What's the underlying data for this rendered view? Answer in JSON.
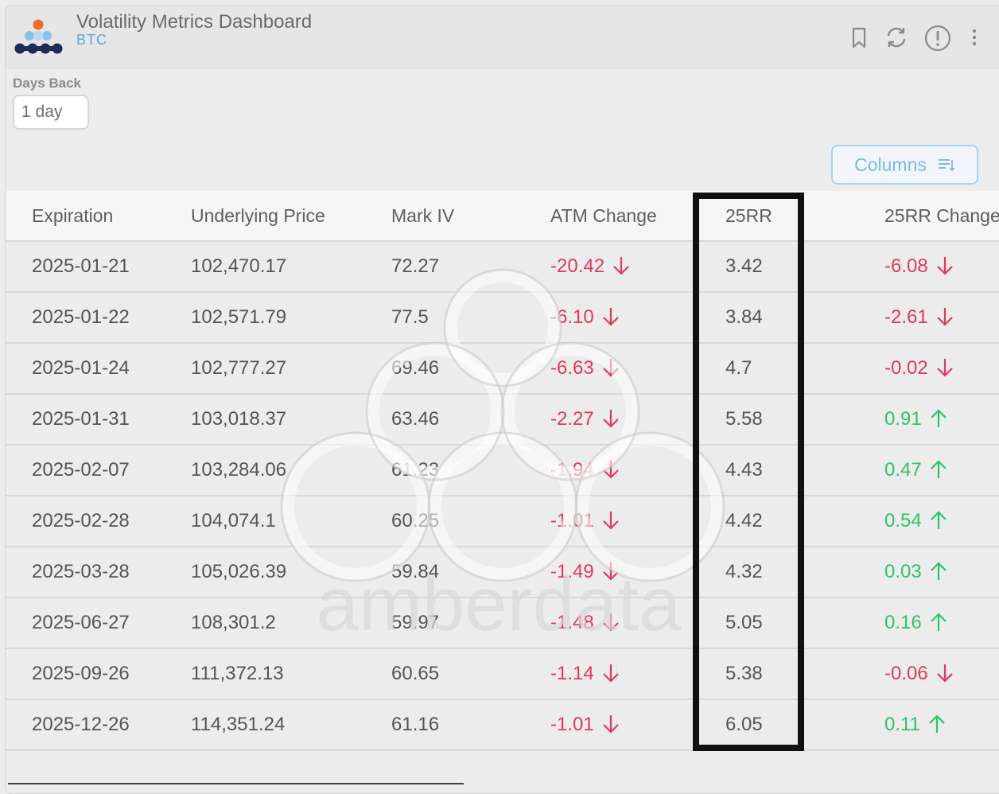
{
  "header": {
    "title": "Volatility Metrics Dashboard",
    "subtitle": "BTC",
    "icons": [
      "bookmark-icon",
      "refresh-icon",
      "info-icon",
      "more-vertical-icon"
    ]
  },
  "filters": {
    "days_back_label": "Days Back",
    "days_back_value": "1 day"
  },
  "toolbar": {
    "columns_label": "Columns"
  },
  "watermark": {
    "text": "amberdata"
  },
  "colors": {
    "negative": "#e0395e",
    "positive": "#2ec36b",
    "accent": "#5aa7e6"
  },
  "table": {
    "columns": [
      "Expiration",
      "Underlying Price",
      "Mark IV",
      "ATM Change",
      "25RR",
      "25RR Change"
    ],
    "rows": [
      {
        "expiration": "2025-01-21",
        "price": "102,470.17",
        "mark_iv": "72.27",
        "atm_change": "-20.42",
        "atm_dir": "down",
        "rr25": "3.42",
        "rr25_change": "-6.08",
        "rr25_dir": "down"
      },
      {
        "expiration": "2025-01-22",
        "price": "102,571.79",
        "mark_iv": "77.5",
        "atm_change": "-6.10",
        "atm_dir": "down",
        "rr25": "3.84",
        "rr25_change": "-2.61",
        "rr25_dir": "down"
      },
      {
        "expiration": "2025-01-24",
        "price": "102,777.27",
        "mark_iv": "69.46",
        "atm_change": "-6.63",
        "atm_dir": "down",
        "rr25": "4.7",
        "rr25_change": "-0.02",
        "rr25_dir": "down"
      },
      {
        "expiration": "2025-01-31",
        "price": "103,018.37",
        "mark_iv": "63.46",
        "atm_change": "-2.27",
        "atm_dir": "down",
        "rr25": "5.58",
        "rr25_change": "0.91",
        "rr25_dir": "up"
      },
      {
        "expiration": "2025-02-07",
        "price": "103,284.06",
        "mark_iv": "61.23",
        "atm_change": "-1.94",
        "atm_dir": "down",
        "rr25": "4.43",
        "rr25_change": "0.47",
        "rr25_dir": "up"
      },
      {
        "expiration": "2025-02-28",
        "price": "104,074.1",
        "mark_iv": "60.25",
        "atm_change": "-1.01",
        "atm_dir": "down",
        "rr25": "4.42",
        "rr25_change": "0.54",
        "rr25_dir": "up"
      },
      {
        "expiration": "2025-03-28",
        "price": "105,026.39",
        "mark_iv": "59.84",
        "atm_change": "-1.49",
        "atm_dir": "down",
        "rr25": "4.32",
        "rr25_change": "0.03",
        "rr25_dir": "up"
      },
      {
        "expiration": "2025-06-27",
        "price": "108,301.2",
        "mark_iv": "59.97",
        "atm_change": "-1.48",
        "atm_dir": "down",
        "rr25": "5.05",
        "rr25_change": "0.16",
        "rr25_dir": "up"
      },
      {
        "expiration": "2025-09-26",
        "price": "111,372.13",
        "mark_iv": "60.65",
        "atm_change": "-1.14",
        "atm_dir": "down",
        "rr25": "5.38",
        "rr25_change": "-0.06",
        "rr25_dir": "down"
      },
      {
        "expiration": "2025-12-26",
        "price": "114,351.24",
        "mark_iv": "61.16",
        "atm_change": "-1.01",
        "atm_dir": "down",
        "rr25": "6.05",
        "rr25_change": "0.11",
        "rr25_dir": "up"
      }
    ]
  }
}
